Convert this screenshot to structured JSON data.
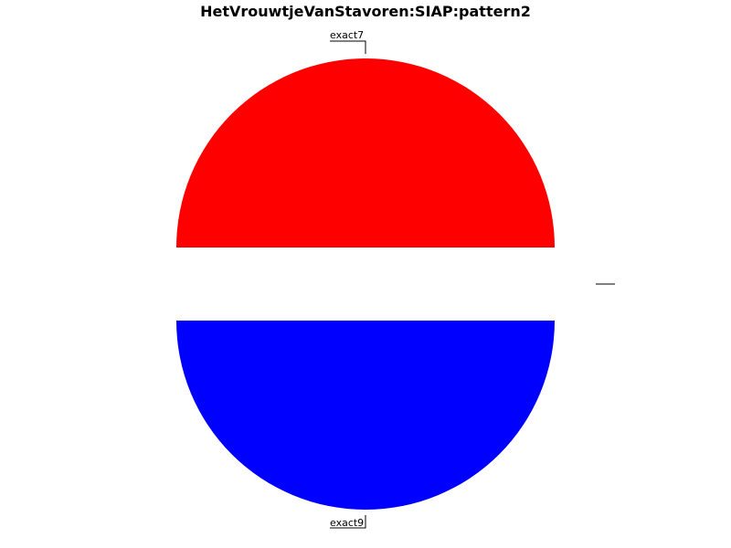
{
  "chart_data": {
    "type": "pie",
    "title": "HetVrouwtjeVanStavoren:SIAP:pattern2",
    "slices": [
      {
        "label": "exact7",
        "value": 49.9,
        "color": "#ff0000"
      },
      {
        "label": "",
        "value": 0.2,
        "color": "#ffffff"
      },
      {
        "label": "exact9",
        "value": 49.9,
        "color": "#0000ff"
      }
    ]
  }
}
